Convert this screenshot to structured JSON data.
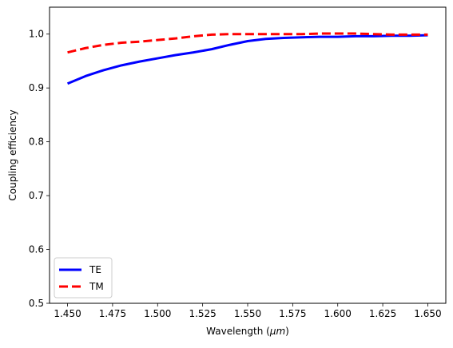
{
  "chart_data": {
    "type": "line",
    "xlabel": "Wavelength",
    "xlabel_unit": "μm",
    "ylabel": "Coupling efficiency",
    "xlim": [
      1.44,
      1.66
    ],
    "ylim": [
      0.5,
      1.05
    ],
    "xticks": [
      "1.450",
      "1.475",
      "1.500",
      "1.525",
      "1.550",
      "1.575",
      "1.600",
      "1.625",
      "1.650"
    ],
    "yticks": [
      "0.5",
      "0.6",
      "0.7",
      "0.8",
      "0.9",
      "1.0"
    ],
    "grid": false,
    "legend_position": "lower-left",
    "series": [
      {
        "name": "TE",
        "color": "#0000ff",
        "style": "solid",
        "x": [
          1.45,
          1.46,
          1.47,
          1.48,
          1.49,
          1.5,
          1.51,
          1.52,
          1.53,
          1.54,
          1.55,
          1.56,
          1.57,
          1.58,
          1.59,
          1.6,
          1.61,
          1.62,
          1.63,
          1.64,
          1.65
        ],
        "y": [
          0.908,
          0.922,
          0.933,
          0.942,
          0.949,
          0.955,
          0.961,
          0.966,
          0.972,
          0.98,
          0.987,
          0.991,
          0.993,
          0.994,
          0.995,
          0.995,
          0.996,
          0.996,
          0.997,
          0.997,
          0.998
        ]
      },
      {
        "name": "TM",
        "color": "#ff0000",
        "style": "dashed",
        "x": [
          1.45,
          1.46,
          1.47,
          1.48,
          1.49,
          1.5,
          1.51,
          1.52,
          1.53,
          1.54,
          1.55,
          1.56,
          1.57,
          1.58,
          1.59,
          1.6,
          1.61,
          1.62,
          1.63,
          1.64,
          1.65
        ],
        "y": [
          0.966,
          0.974,
          0.98,
          0.984,
          0.986,
          0.989,
          0.992,
          0.996,
          0.999,
          1.0,
          1.0,
          1.0,
          1.0,
          1.0,
          1.001,
          1.001,
          1.001,
          1.0,
          0.999,
          0.999,
          0.999
        ]
      }
    ]
  }
}
